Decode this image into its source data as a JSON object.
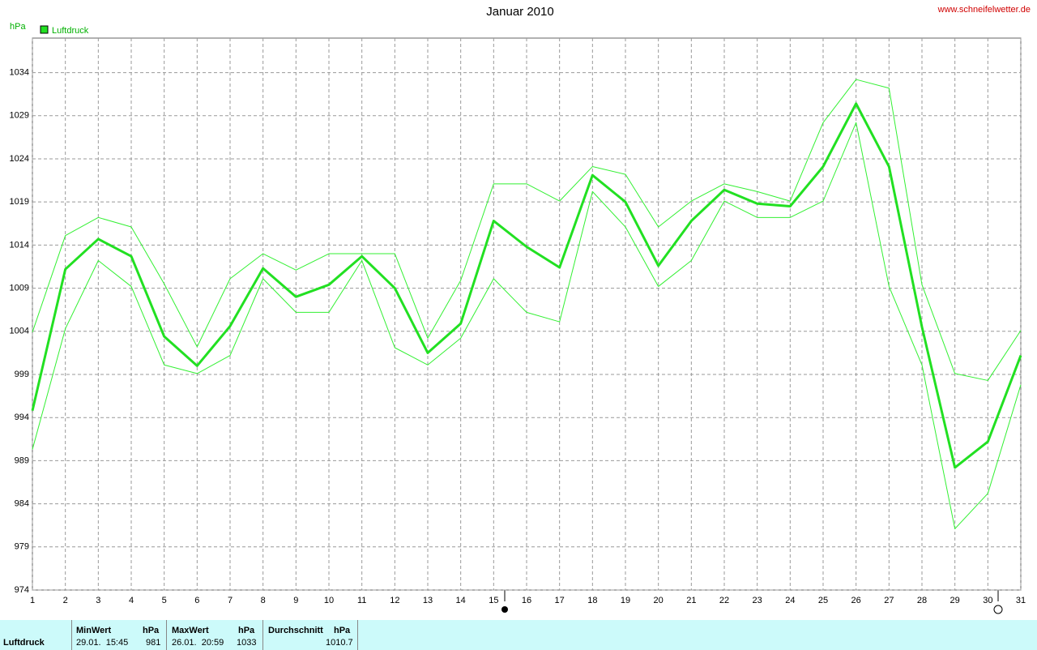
{
  "chart_data": {
    "type": "line",
    "title": "Januar 2010",
    "source": "www.schneifelwetter.de",
    "y_label": "hPa",
    "x": [
      1,
      2,
      3,
      4,
      5,
      6,
      7,
      8,
      9,
      10,
      11,
      12,
      13,
      14,
      15,
      16,
      17,
      18,
      19,
      20,
      21,
      22,
      23,
      24,
      25,
      26,
      27,
      28,
      29,
      30,
      31
    ],
    "xlim": [
      1,
      31
    ],
    "xticks": [
      1,
      2,
      3,
      4,
      5,
      6,
      7,
      8,
      9,
      10,
      11,
      12,
      13,
      14,
      15,
      16,
      17,
      18,
      19,
      20,
      21,
      22,
      23,
      24,
      25,
      26,
      27,
      28,
      29,
      30,
      31
    ],
    "ylim": [
      974,
      1038
    ],
    "yticks": [
      974,
      979,
      984,
      989,
      994,
      999,
      1004,
      1009,
      1014,
      1019,
      1024,
      1029,
      1034
    ],
    "grid": true,
    "legend": "top-left",
    "series": [
      {
        "name": "Luftdruck",
        "color": "#22e022",
        "line_width": 3,
        "values": [
          994.8,
          1011.2,
          1014.7,
          1012.7,
          1003.4,
          1000.0,
          1004.6,
          1011.3,
          1008.0,
          1009.4,
          1012.7,
          1009.0,
          1001.5,
          1004.9,
          1016.8,
          1013.8,
          1011.4,
          1022.1,
          1019.0,
          1011.6,
          1016.8,
          1020.4,
          1018.8,
          1018.5,
          1023.1,
          1030.4,
          1023.1,
          1004.5,
          988.2,
          991.2,
          1001.2
        ]
      },
      {
        "color": "#33f033",
        "line_width": 1,
        "values": [
          1003.9,
          1015.1,
          1017.2,
          1016.1,
          1009.5,
          1002.2,
          1010.1,
          1013.0,
          1011.1,
          1013.0,
          1013.0,
          1013.0,
          1003.2,
          1009.9,
          1021.1,
          1021.1,
          1019.1,
          1023.1,
          1022.2,
          1016.1,
          1019.1,
          1021.1,
          1020.2,
          1019.1,
          1028.2,
          1033.2,
          1032.2,
          1009.4,
          999.1,
          998.3,
          1004.1
        ]
      },
      {
        "color": "#33f033",
        "line_width": 1,
        "values": [
          990.3,
          1004.3,
          1012.2,
          1009.2,
          1000.1,
          999.1,
          1001.2,
          1010.1,
          1006.2,
          1006.2,
          1012.2,
          1002.1,
          1000.1,
          1003.2,
          1010.1,
          1006.2,
          1005.1,
          1020.2,
          1016.1,
          1009.2,
          1012.2,
          1019.1,
          1017.2,
          1017.2,
          1019.1,
          1028.2,
          1009.2,
          1000.1,
          981.1,
          985.2,
          997.8
        ]
      }
    ]
  },
  "footer": {
    "row_label": "Luftdruck",
    "min": {
      "title": "MinWert",
      "unit": "hPa",
      "time": "29.01.  15:45",
      "value": 981
    },
    "max": {
      "title": "MaxWert",
      "unit": "hPa",
      "time": "26.01.  20:59",
      "value": 1033
    },
    "avg": {
      "title": "Durchschnitt",
      "unit": "hPa",
      "value": 1010.7
    }
  }
}
